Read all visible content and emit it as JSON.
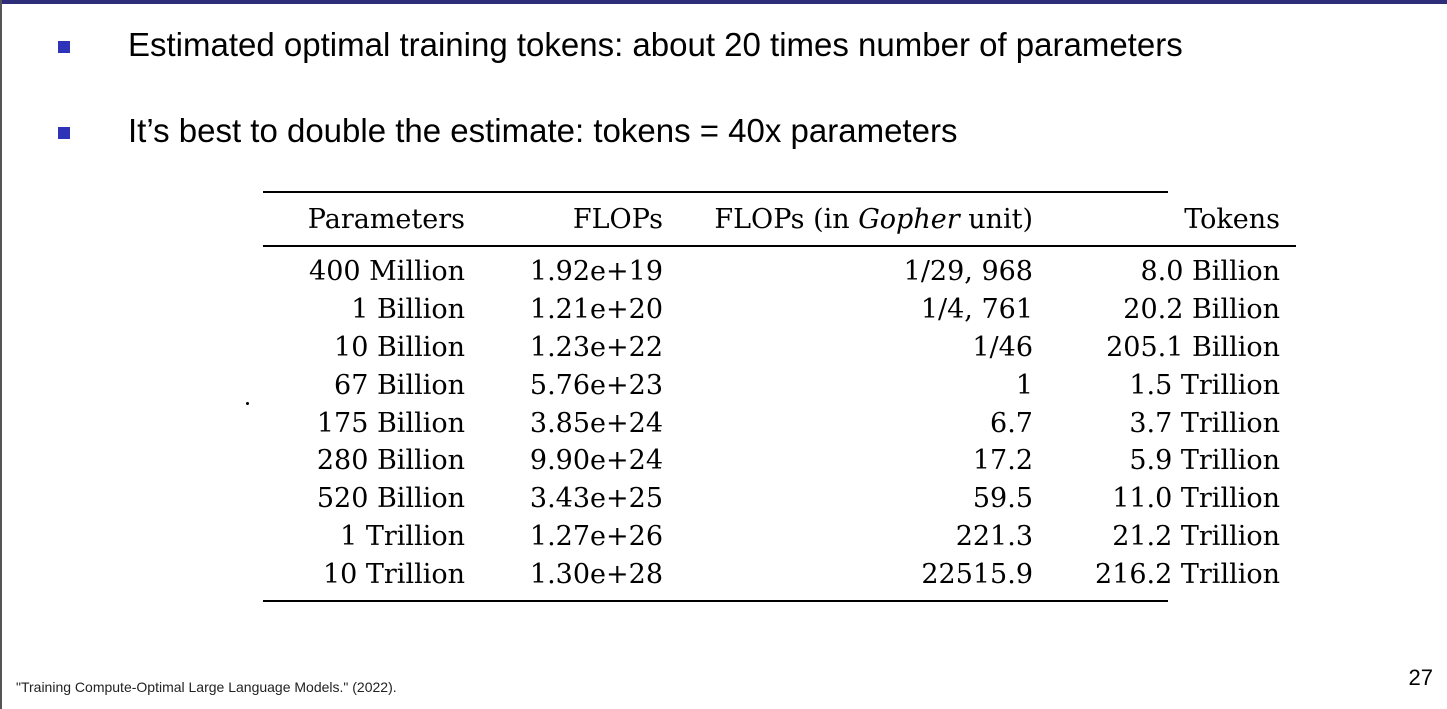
{
  "slide": {
    "bullets": [
      "Estimated optimal training tokens: about 20 times number of parameters",
      "It’s best to double the estimate: tokens = 40x parameters"
    ],
    "table": {
      "headers": {
        "parameters": "Parameters",
        "flops": "FLOPs",
        "gopher_prefix": "FLOPs (in ",
        "gopher_italic": "Gopher",
        "gopher_suffix": " unit)",
        "tokens": "Tokens"
      },
      "rows": [
        [
          "400 Million",
          "1.92e+19",
          "1/29, 968",
          "8.0 Billion"
        ],
        [
          "1 Billion",
          "1.21e+20",
          "1/4, 761",
          "20.2 Billion"
        ],
        [
          "10 Billion",
          "1.23e+22",
          "1/46",
          "205.1 Billion"
        ],
        [
          "67 Billion",
          "5.76e+23",
          "1",
          "1.5 Trillion"
        ],
        [
          "175 Billion",
          "3.85e+24",
          "6.7",
          "3.7 Trillion"
        ],
        [
          "280 Billion",
          "9.90e+24",
          "17.2",
          "5.9 Trillion"
        ],
        [
          "520 Billion",
          "3.43e+25",
          "59.5",
          "11.0 Trillion"
        ],
        [
          "1 Trillion",
          "1.27e+26",
          "221.3",
          "21.2 Trillion"
        ],
        [
          "10 Trillion",
          "1.30e+28",
          "22515.9",
          "216.2 Trillion"
        ]
      ]
    },
    "citation": "\"Training Compute-Optimal Large Language Models.\"  (2022).",
    "page_number": "27",
    "colors": {
      "accent": "#2f33b8",
      "top_rule": "#2d2d7a"
    }
  }
}
